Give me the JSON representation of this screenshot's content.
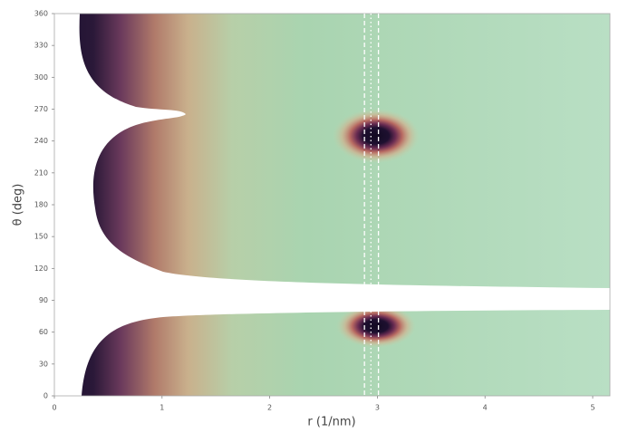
{
  "chart_data": {
    "type": "heatmap",
    "xlabel": "r (1/nm)",
    "ylabel": "θ (deg)",
    "xlim": [
      0,
      5.16
    ],
    "ylim": [
      0,
      360
    ],
    "xticks": [
      0,
      1,
      2,
      3,
      4,
      5
    ],
    "yticks": [
      0,
      30,
      60,
      90,
      120,
      150,
      180,
      210,
      240,
      270,
      300,
      330,
      360
    ],
    "vlines": [
      2.88,
      2.94,
      3.01
    ],
    "vline_styles": [
      "dashed",
      "dotted",
      "dashed"
    ],
    "vline_color": "#ffffff"
  }
}
